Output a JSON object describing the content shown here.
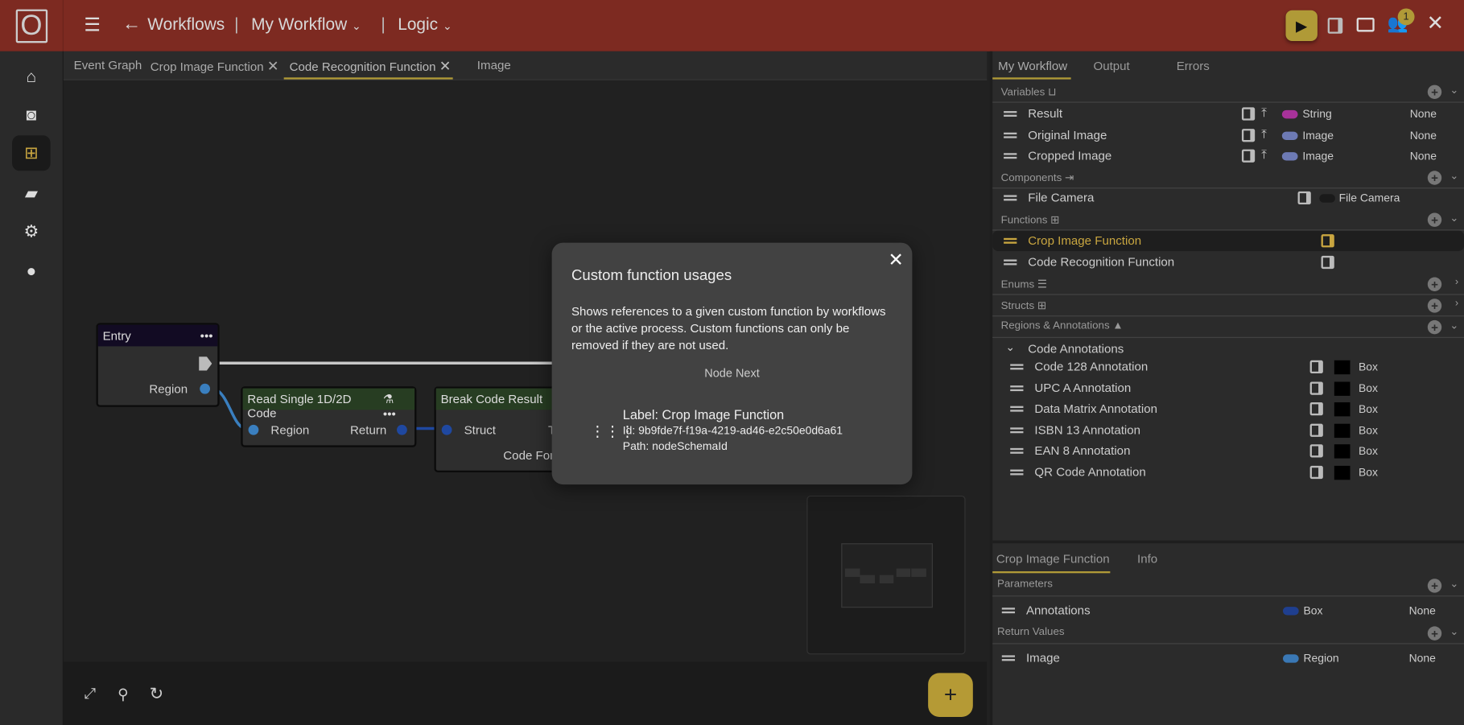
{
  "header": {
    "logo": "O",
    "back_label": "Workflows",
    "workflow": "My Workflow",
    "view": "Logic",
    "notification_count": "1"
  },
  "sidebar": {
    "items": [
      {
        "icon": "home-icon"
      },
      {
        "icon": "camera-icon"
      },
      {
        "icon": "workflow-icon",
        "active": true
      },
      {
        "icon": "folder-icon"
      },
      {
        "icon": "gear-icon"
      },
      {
        "icon": "alert-icon"
      }
    ]
  },
  "tabs": [
    {
      "label": "Event Graph"
    },
    {
      "label": "Crop Image Function",
      "closable": true
    },
    {
      "label": "Code Recognition Function",
      "closable": true,
      "active": true
    },
    {
      "label": "Image"
    }
  ],
  "nodes": {
    "entry": {
      "title": "Entry",
      "pin": "Region"
    },
    "read": {
      "title": "Read Single 1D/2D Code",
      "in": "Region",
      "out": "Return"
    },
    "break": {
      "title": "Break Code Result",
      "in": "Struct",
      "out_partial": "T",
      "out2_partial": "Code Forr"
    }
  },
  "dialog": {
    "title": "Custom function usages",
    "description": "Shows references to a given custom function by workflows or the active process. Custom functions can only be removed if they are not used.",
    "group": "Node Next",
    "usage": {
      "label": "Label: Crop Image Function",
      "id": "Id: 9b9fde7f-f19a-4219-ad46-e2c50e0d6a61",
      "path": "Path: nodeSchemaId"
    }
  },
  "right": {
    "tabs": [
      "My Workflow",
      "Output",
      "Errors"
    ],
    "variables_label": "Variables",
    "variables": [
      {
        "name": "Result",
        "type": "String",
        "color": "#a8329a",
        "value": "None"
      },
      {
        "name": "Original Image",
        "type": "Image",
        "color": "#6d7ab4",
        "value": "None"
      },
      {
        "name": "Cropped Image",
        "type": "Image",
        "color": "#6d7ab4",
        "value": "None"
      }
    ],
    "components_label": "Components",
    "components": [
      {
        "name": "File Camera",
        "type": "File Camera"
      }
    ],
    "functions_label": "Functions",
    "functions": [
      {
        "name": "Crop Image Function",
        "selected": true
      },
      {
        "name": "Code Recognition Function"
      }
    ],
    "enums_label": "Enums",
    "structs_label": "Structs",
    "regions_label": "Regions & Annotations",
    "group": "Code Annotations",
    "annotations": [
      {
        "name": "Code 128 Annotation",
        "type": "Box"
      },
      {
        "name": "UPC A Annotation",
        "type": "Box"
      },
      {
        "name": "Data Matrix Annotation",
        "type": "Box"
      },
      {
        "name": "ISBN 13 Annotation",
        "type": "Box"
      },
      {
        "name": "EAN 8 Annotation",
        "type": "Box"
      },
      {
        "name": "QR Code Annotation",
        "type": "Box"
      }
    ]
  },
  "details": {
    "tabs": [
      "Crop Image Function",
      "Info"
    ],
    "parameters_label": "Parameters",
    "parameters": [
      {
        "name": "Annotations",
        "type": "Box",
        "color": "#1f3f8f",
        "value": "None"
      }
    ],
    "returns_label": "Return Values",
    "returns": [
      {
        "name": "Image",
        "type": "Region",
        "color": "#3a78b5",
        "value": "None"
      }
    ]
  },
  "colors": {
    "header": "#7d2a21",
    "accent": "#b09a37"
  }
}
